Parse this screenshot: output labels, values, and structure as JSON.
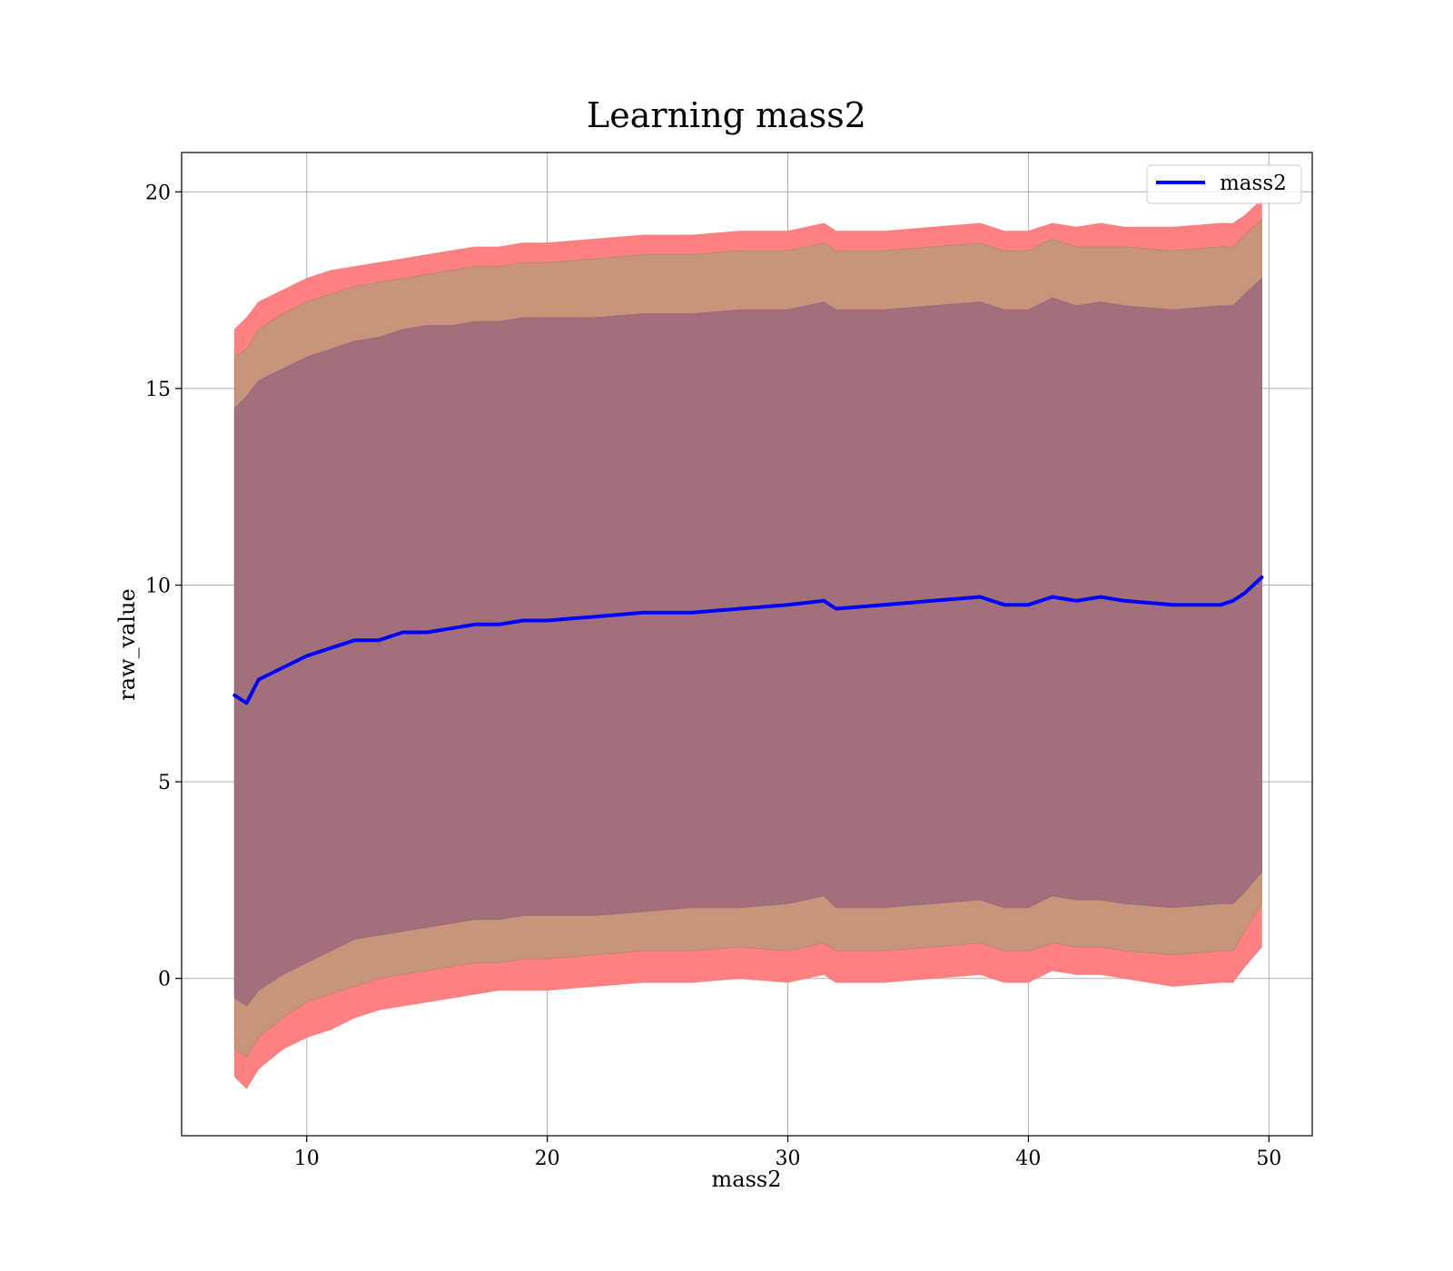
{
  "chart_data": {
    "type": "line",
    "title": "Learning mass2",
    "xlabel": "mass2",
    "ylabel": "raw_value",
    "xlim": [
      4.8,
      51.8
    ],
    "ylim": [
      -4.0,
      21.0
    ],
    "xticks": [
      10,
      20,
      30,
      40,
      50
    ],
    "yticks": [
      0,
      5,
      10,
      15,
      20
    ],
    "xtick_labels": [
      "10",
      "20",
      "30",
      "40",
      "50"
    ],
    "ytick_labels": [
      "0",
      "5",
      "10",
      "15",
      "20"
    ],
    "grid": true,
    "legend_position": "top-right",
    "colors": {
      "line": "#0000ff",
      "band_outer": "#ff8080",
      "band_middle": "#c8957a",
      "band_inner": "#a2707a",
      "grid": "#b0b0b0"
    },
    "series": [
      {
        "name": "mass2",
        "x": [
          7.0,
          7.5,
          8.0,
          9.0,
          10.0,
          11.0,
          12.0,
          13.0,
          14.0,
          15.0,
          16.0,
          17.0,
          18.0,
          19.0,
          20.0,
          22.0,
          24.0,
          26.0,
          28.0,
          30.0,
          31.5,
          32.0,
          34.0,
          36.0,
          38.0,
          39.0,
          40.0,
          41.0,
          42.0,
          43.0,
          44.0,
          46.0,
          48.0,
          48.5,
          49.0,
          49.7
        ],
        "y": [
          7.2,
          7.0,
          7.6,
          7.9,
          8.2,
          8.4,
          8.6,
          8.6,
          8.8,
          8.8,
          8.9,
          9.0,
          9.0,
          9.1,
          9.1,
          9.2,
          9.3,
          9.3,
          9.4,
          9.5,
          9.6,
          9.4,
          9.5,
          9.6,
          9.7,
          9.5,
          9.5,
          9.7,
          9.6,
          9.7,
          9.6,
          9.5,
          9.5,
          9.6,
          9.8,
          10.2
        ]
      }
    ],
    "bands": [
      {
        "role": "outer",
        "x": [
          7.0,
          7.5,
          8.0,
          9.0,
          10.0,
          11.0,
          12.0,
          13.0,
          14.0,
          15.0,
          16.0,
          17.0,
          18.0,
          19.0,
          20.0,
          22.0,
          24.0,
          26.0,
          28.0,
          30.0,
          31.5,
          32.0,
          34.0,
          36.0,
          38.0,
          39.0,
          40.0,
          41.0,
          42.0,
          43.0,
          44.0,
          46.0,
          48.0,
          48.5,
          49.0,
          49.7
        ],
        "upper": [
          16.5,
          16.8,
          17.2,
          17.5,
          17.8,
          18.0,
          18.1,
          18.2,
          18.3,
          18.4,
          18.5,
          18.6,
          18.6,
          18.7,
          18.7,
          18.8,
          18.9,
          18.9,
          19.0,
          19.0,
          19.2,
          19.0,
          19.0,
          19.1,
          19.2,
          19.0,
          19.0,
          19.2,
          19.1,
          19.2,
          19.1,
          19.1,
          19.2,
          19.2,
          19.4,
          19.8
        ],
        "lower": [
          -2.5,
          -2.8,
          -2.3,
          -1.8,
          -1.5,
          -1.3,
          -1.0,
          -0.8,
          -0.7,
          -0.6,
          -0.5,
          -0.4,
          -0.3,
          -0.3,
          -0.3,
          -0.2,
          -0.1,
          -0.1,
          0.0,
          -0.1,
          0.1,
          -0.1,
          -0.1,
          0.0,
          0.1,
          -0.1,
          -0.1,
          0.2,
          0.1,
          0.1,
          0.0,
          -0.2,
          -0.1,
          -0.1,
          0.3,
          0.8
        ]
      },
      {
        "role": "middle",
        "x": [
          7.0,
          7.5,
          8.0,
          9.0,
          10.0,
          11.0,
          12.0,
          13.0,
          14.0,
          15.0,
          16.0,
          17.0,
          18.0,
          19.0,
          20.0,
          22.0,
          24.0,
          26.0,
          28.0,
          30.0,
          31.5,
          32.0,
          34.0,
          36.0,
          38.0,
          39.0,
          40.0,
          41.0,
          42.0,
          43.0,
          44.0,
          46.0,
          48.0,
          48.5,
          49.0,
          49.7
        ],
        "upper": [
          15.8,
          16.0,
          16.5,
          16.9,
          17.2,
          17.4,
          17.6,
          17.7,
          17.8,
          17.9,
          18.0,
          18.1,
          18.1,
          18.2,
          18.2,
          18.3,
          18.4,
          18.4,
          18.5,
          18.5,
          18.7,
          18.5,
          18.5,
          18.6,
          18.7,
          18.5,
          18.5,
          18.8,
          18.6,
          18.6,
          18.6,
          18.5,
          18.6,
          18.6,
          18.9,
          19.3
        ],
        "lower": [
          -1.8,
          -2.0,
          -1.5,
          -1.0,
          -0.6,
          -0.4,
          -0.2,
          0.0,
          0.1,
          0.2,
          0.3,
          0.4,
          0.4,
          0.5,
          0.5,
          0.6,
          0.7,
          0.7,
          0.8,
          0.7,
          0.9,
          0.7,
          0.7,
          0.8,
          0.9,
          0.7,
          0.7,
          0.9,
          0.8,
          0.8,
          0.7,
          0.6,
          0.7,
          0.7,
          1.2,
          1.9
        ]
      },
      {
        "role": "inner",
        "x": [
          7.0,
          7.5,
          8.0,
          9.0,
          10.0,
          11.0,
          12.0,
          13.0,
          14.0,
          15.0,
          16.0,
          17.0,
          18.0,
          19.0,
          20.0,
          22.0,
          24.0,
          26.0,
          28.0,
          30.0,
          31.5,
          32.0,
          34.0,
          36.0,
          38.0,
          39.0,
          40.0,
          41.0,
          42.0,
          43.0,
          44.0,
          46.0,
          48.0,
          48.5,
          49.0,
          49.7
        ],
        "upper": [
          14.5,
          14.8,
          15.2,
          15.5,
          15.8,
          16.0,
          16.2,
          16.3,
          16.5,
          16.6,
          16.6,
          16.7,
          16.7,
          16.8,
          16.8,
          16.8,
          16.9,
          16.9,
          17.0,
          17.0,
          17.2,
          17.0,
          17.0,
          17.1,
          17.2,
          17.0,
          17.0,
          17.3,
          17.1,
          17.2,
          17.1,
          17.0,
          17.1,
          17.1,
          17.4,
          17.8
        ],
        "lower": [
          -0.5,
          -0.7,
          -0.3,
          0.1,
          0.4,
          0.7,
          1.0,
          1.1,
          1.2,
          1.3,
          1.4,
          1.5,
          1.5,
          1.6,
          1.6,
          1.6,
          1.7,
          1.8,
          1.8,
          1.9,
          2.1,
          1.8,
          1.8,
          1.9,
          2.0,
          1.8,
          1.8,
          2.1,
          2.0,
          2.0,
          1.9,
          1.8,
          1.9,
          1.9,
          2.2,
          2.7
        ]
      }
    ]
  }
}
